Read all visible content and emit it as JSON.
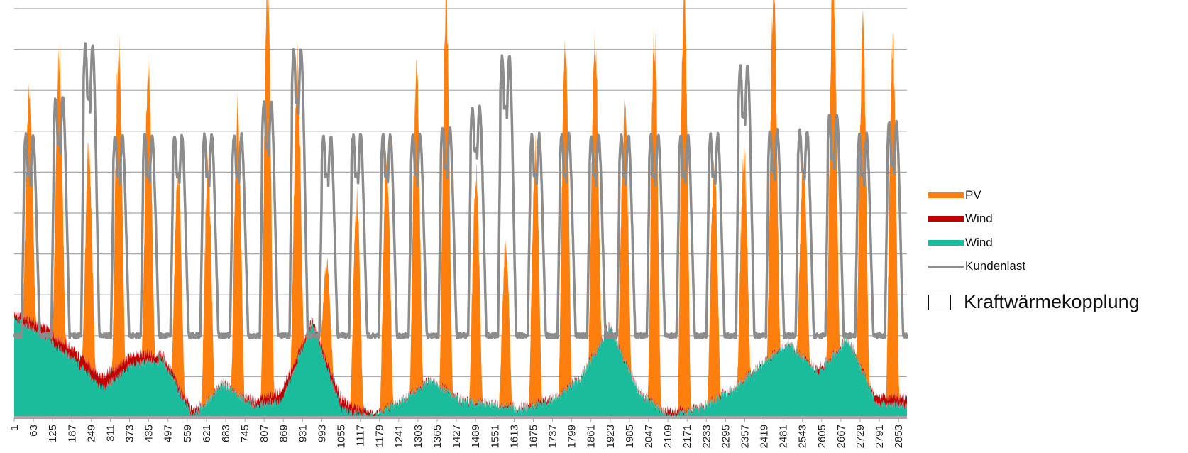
{
  "chart_data": {
    "type": "area",
    "title": "",
    "xlabel": "",
    "ylabel": "",
    "x_range": [
      1,
      2880
    ],
    "x_tick_labels": [
      "1",
      "63",
      "125",
      "187",
      "249",
      "311",
      "373",
      "435",
      "497",
      "559",
      "621",
      "683",
      "745",
      "807",
      "869",
      "931",
      "993",
      "1055",
      "1117",
      "1179",
      "1241",
      "1303",
      "1365",
      "1427",
      "1489",
      "1551",
      "1613",
      "1675",
      "1737",
      "1799",
      "1861",
      "1923",
      "1985",
      "2047",
      "2109",
      "2171",
      "2233",
      "2295",
      "2357",
      "2419",
      "2481",
      "2543",
      "2605",
      "2667",
      "2729",
      "2791",
      "2853"
    ],
    "y_range": [
      0,
      10
    ],
    "y_tick_labels_visible": false,
    "grid": "horizontal",
    "legend_position": "right",
    "days": 30,
    "day_length_steps": 96,
    "series": [
      {
        "name": "PV",
        "stack": "top",
        "color": "#ff7f0e",
        "daily_peak": [
          5.5,
          7.1,
          5.3,
          7.9,
          6.8,
          5.2,
          5.8,
          6.9,
          10.1,
          7.2,
          2.5,
          5.1,
          6.2,
          7.8,
          9.4,
          5.6,
          3.9,
          6.4,
          8.5,
          7.8,
          6.3,
          9.1,
          10.4,
          5.8,
          5.6,
          8.8,
          4.6,
          9.4,
          8.2,
          8.6
        ]
      },
      {
        "name": "Wind",
        "stack": "middle",
        "color": "#c00000",
        "daily_level": [
          2.6,
          2.4,
          1.8,
          1.2,
          1.7,
          1.6,
          0.2,
          0.5,
          0.5,
          0.8,
          2.4,
          0.6,
          0.1,
          0.2,
          0.4,
          0.2,
          0.2,
          0.2,
          0.5,
          0.3,
          0.3,
          0.1,
          0.2,
          0.1,
          0.3,
          0.5,
          0.4,
          1.3,
          1.1,
          0.6
        ]
      },
      {
        "name": "Wind",
        "stack": "bottom",
        "color": "#1abc9c",
        "daily_level": [
          2.4,
          2.0,
          1.4,
          0.7,
          1.3,
          1.4,
          0.0,
          0.8,
          0.3,
          0.4,
          2.3,
          0.2,
          0.0,
          0.4,
          0.9,
          0.4,
          0.3,
          0.2,
          0.4,
          0.9,
          2.2,
          0.6,
          0.0,
          0.2,
          0.6,
          1.2,
          1.8,
          1.1,
          1.9,
          0.3
        ]
      },
      {
        "name": "Kundenlast",
        "type": "line",
        "color": "#8c8c8c",
        "night_min": 2.0,
        "daily_peak": [
          6.9,
          7.8,
          9.1,
          6.9,
          6.9,
          6.9,
          6.9,
          6.9,
          7.7,
          9.0,
          6.9,
          6.9,
          6.9,
          6.9,
          7.1,
          7.6,
          8.8,
          6.9,
          6.9,
          6.9,
          6.9,
          6.9,
          6.9,
          6.9,
          8.6,
          7.0,
          7.0,
          7.4,
          6.9,
          7.2
        ]
      }
    ]
  },
  "extra_legend": {
    "label": "Kraftwärmekopplung",
    "border_color": "#111111"
  }
}
